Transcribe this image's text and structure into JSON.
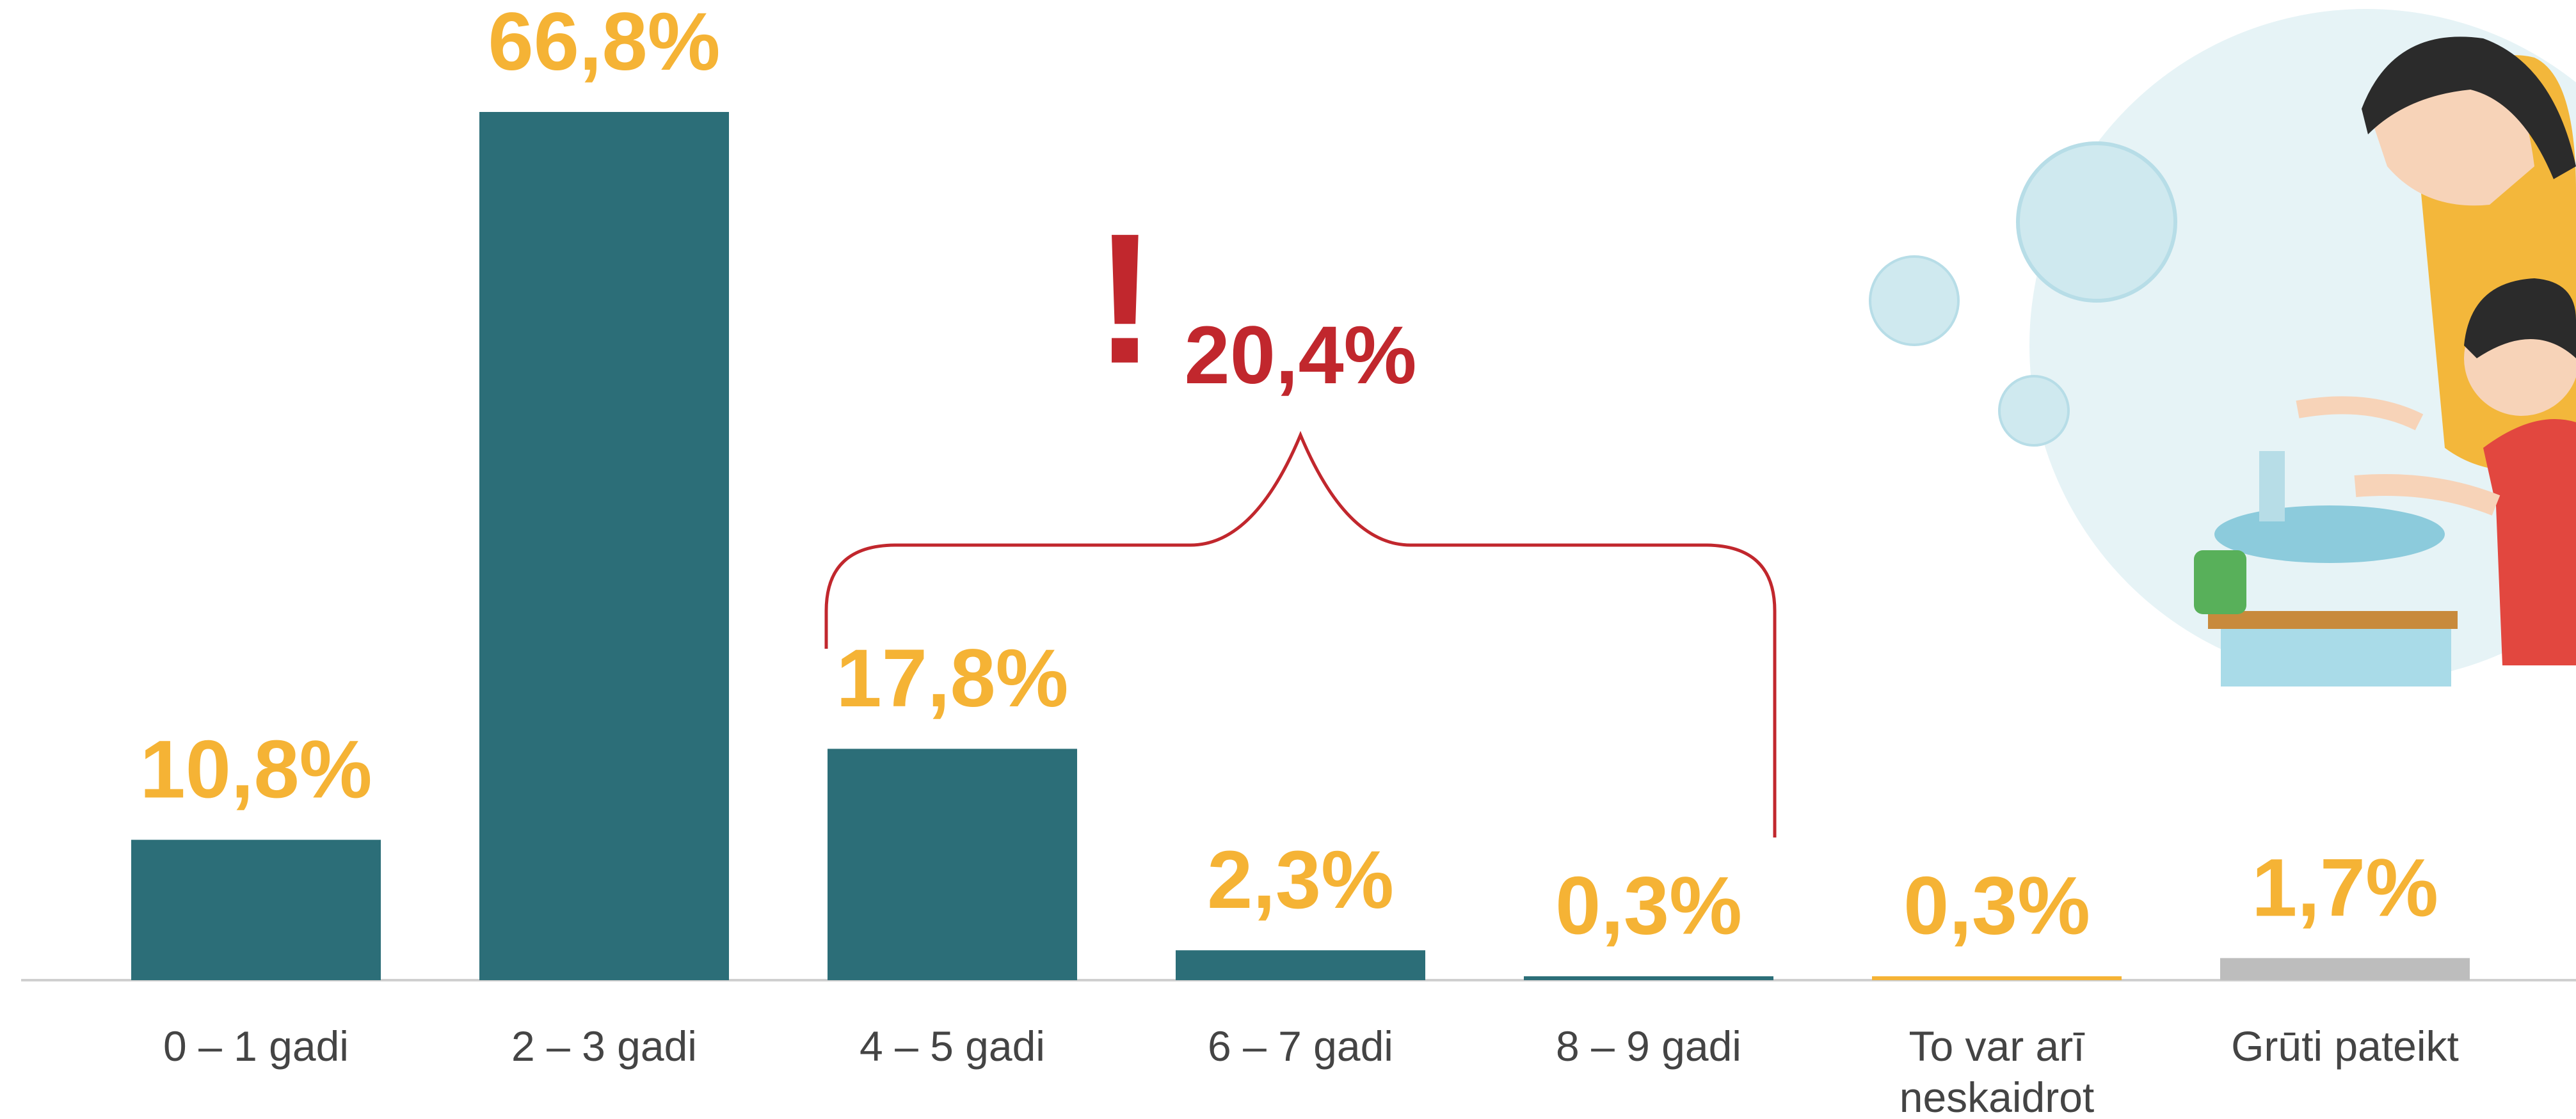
{
  "chart_data": {
    "type": "bar",
    "categories": [
      "0 – 1 gadi",
      "2 – 3 gadi",
      "4 – 5 gadi",
      "6 – 7 gadi",
      "8 – 9 gadi",
      "To var arī neskaidrot",
      "Grūti pateikt"
    ],
    "values": [
      10.8,
      66.8,
      17.8,
      2.3,
      0.3,
      0.3,
      1.7
    ],
    "value_labels": [
      "10,8%",
      "66,8%",
      "17,8%",
      "2,3%",
      "0,3%",
      "0,3%",
      "1,7%"
    ],
    "colors": [
      "#2c6e78",
      "#2c6e78",
      "#2c6e78",
      "#2c6e78",
      "#2c6e78",
      "#f5b335",
      "#bdbdbd"
    ],
    "value_label_color": "#f5b335",
    "annotation": {
      "mark": "!",
      "text": "20,4%",
      "color": "#c1272d"
    }
  }
}
